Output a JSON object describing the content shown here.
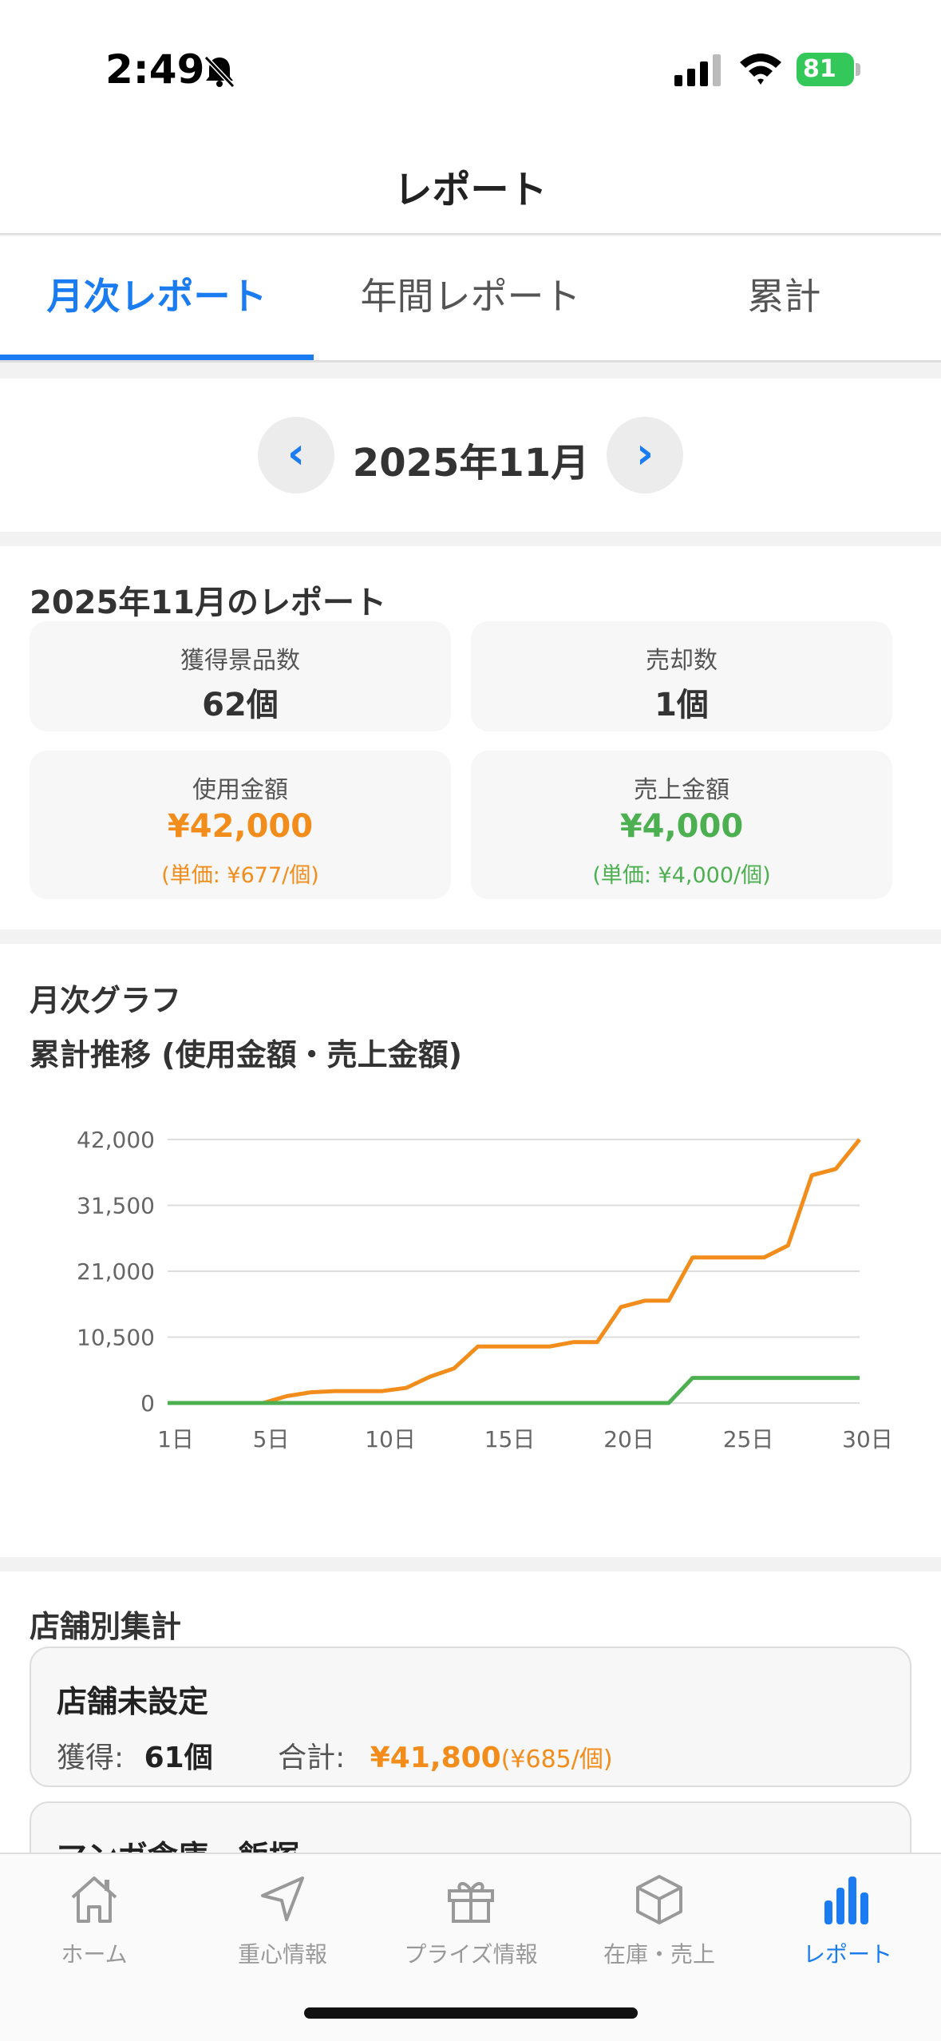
{
  "status": {
    "time": "2:49",
    "battery": "81"
  },
  "nav": {
    "title": "レポート"
  },
  "tabs": [
    {
      "label": "月次レポート",
      "active": true
    },
    {
      "label": "年間レポート",
      "active": false
    },
    {
      "label": "累計",
      "active": false
    }
  ],
  "month": {
    "prev": "‹",
    "label": "2025年11月",
    "next": "›"
  },
  "summary": {
    "title": "2025年11月のレポート",
    "prizes_label": "獲得景品数",
    "prizes_value": "62個",
    "sold_label": "売却数",
    "sold_value": "1個",
    "spent_label": "使用金額",
    "spent_value": "¥42,000",
    "spent_unit": "(単価: ¥677/個)",
    "sales_label": "売上金額",
    "sales_value": "¥4,000",
    "sales_unit": "(単価: ¥4,000/個)"
  },
  "graph": {
    "title": "月次グラフ",
    "subtitle": "累計推移 (使用金額・売上金額)"
  },
  "chart_data": {
    "type": "line",
    "title": "累計推移 (使用金額・売上金額)",
    "x": [
      1,
      2,
      3,
      4,
      5,
      6,
      7,
      8,
      9,
      10,
      11,
      12,
      13,
      14,
      15,
      16,
      17,
      18,
      19,
      20,
      21,
      22,
      23,
      24,
      25,
      26,
      27,
      28,
      29,
      30
    ],
    "x_ticks": [
      "1日",
      "5日",
      "10日",
      "15日",
      "20日",
      "25日",
      "30日"
    ],
    "x_tick_values": [
      1,
      5,
      10,
      15,
      20,
      25,
      30
    ],
    "y_ticks": [
      "0",
      "10,500",
      "21,000",
      "31,500",
      "42,000"
    ],
    "ylim": [
      0,
      42000
    ],
    "grid": true,
    "legend": "none",
    "series": [
      {
        "color": "#f28c1b",
        "values": [
          0,
          0,
          0,
          0,
          0,
          1100,
          1700,
          1900,
          1900,
          1900,
          2400,
          4200,
          5500,
          9000,
          9000,
          9000,
          9000,
          9700,
          9700,
          15300,
          16300,
          16300,
          23200,
          23200,
          23200,
          23200,
          25100,
          36300,
          37300,
          42000
        ]
      },
      {
        "color": "#4caf50",
        "values": [
          0,
          0,
          0,
          0,
          0,
          0,
          0,
          0,
          0,
          0,
          0,
          0,
          0,
          0,
          0,
          0,
          0,
          0,
          0,
          0,
          0,
          0,
          4000,
          4000,
          4000,
          4000,
          4000,
          4000,
          4000,
          4000
        ]
      }
    ]
  },
  "stores": {
    "title": "店舗別集計",
    "items": [
      {
        "name": "店舗未設定",
        "acquired_label": "獲得:",
        "acquired_value": "61個",
        "total_label": "合計:",
        "total_value": "¥41,800",
        "unit": "(¥685/個)"
      },
      {
        "name": "マンガ倉庫　飯塚"
      }
    ]
  },
  "tabbar": [
    {
      "label": "ホーム",
      "icon": "home-icon"
    },
    {
      "label": "重心情報",
      "icon": "navigation-arrow-icon"
    },
    {
      "label": "プライズ情報",
      "icon": "gift-icon"
    },
    {
      "label": "在庫・売上",
      "icon": "box-icon"
    },
    {
      "label": "レポート",
      "icon": "bar-chart-icon",
      "active": true
    }
  ]
}
